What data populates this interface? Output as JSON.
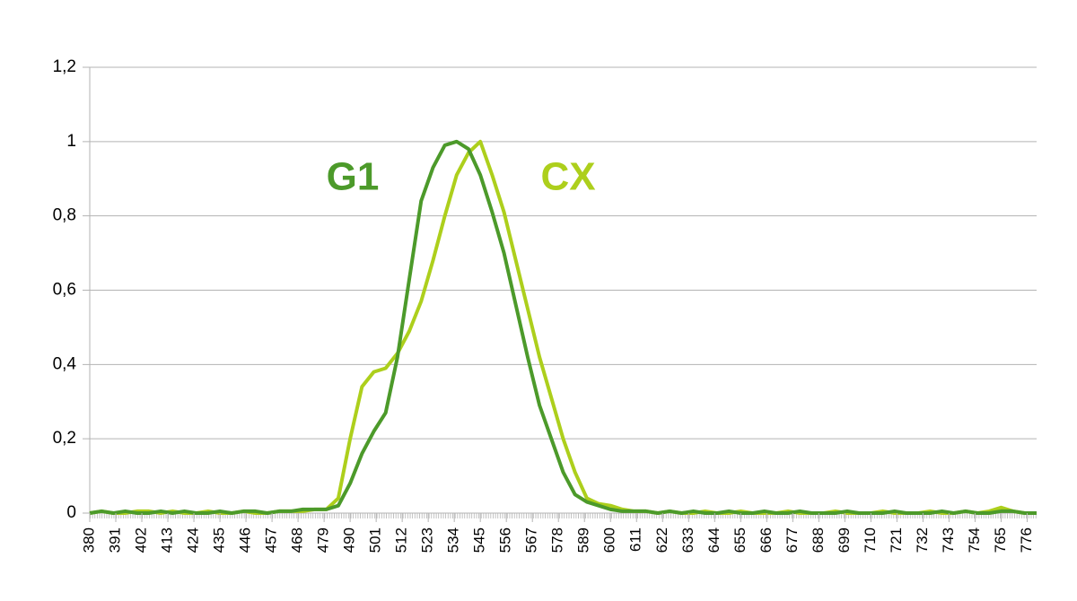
{
  "chart_data": {
    "type": "line",
    "x": [
      380,
      385,
      390,
      395,
      400,
      405,
      410,
      415,
      420,
      425,
      430,
      435,
      440,
      445,
      450,
      455,
      460,
      465,
      470,
      475,
      480,
      485,
      490,
      495,
      500,
      505,
      510,
      515,
      520,
      525,
      530,
      535,
      540,
      545,
      550,
      555,
      560,
      565,
      570,
      575,
      580,
      585,
      590,
      595,
      600,
      605,
      610,
      615,
      620,
      625,
      630,
      635,
      640,
      645,
      650,
      655,
      660,
      665,
      670,
      675,
      680,
      685,
      690,
      695,
      700,
      705,
      710,
      715,
      720,
      725,
      730,
      735,
      740,
      745,
      750,
      755,
      760,
      765,
      770,
      775,
      780
    ],
    "series": [
      {
        "name": "G1",
        "color": "#4c9a2a",
        "values": [
          0,
          0.005,
          0,
          0.005,
          0,
          0,
          0.005,
          0,
          0.005,
          0,
          0,
          0.005,
          0,
          0.005,
          0.005,
          0,
          0.005,
          0.005,
          0.01,
          0.01,
          0.01,
          0.02,
          0.08,
          0.16,
          0.22,
          0.27,
          0.42,
          0.63,
          0.84,
          0.93,
          0.99,
          1.0,
          0.98,
          0.91,
          0.81,
          0.7,
          0.56,
          0.42,
          0.29,
          0.2,
          0.11,
          0.05,
          0.03,
          0.02,
          0.01,
          0.005,
          0.005,
          0.005,
          0,
          0.005,
          0,
          0.005,
          0,
          0,
          0.005,
          0,
          0,
          0.005,
          0,
          0,
          0.005,
          0,
          0,
          0,
          0.005,
          0,
          0,
          0,
          0.005,
          0,
          0,
          0,
          0.005,
          0,
          0.005,
          0,
          0,
          0.005,
          0.005,
          0,
          0
        ]
      },
      {
        "name": "CX",
        "color": "#adcf1c",
        "values": [
          0,
          0.005,
          0,
          0,
          0.005,
          0.005,
          0,
          0.005,
          0,
          0,
          0.005,
          0,
          0,
          0.005,
          0,
          0,
          0.005,
          0.005,
          0.005,
          0.01,
          0.01,
          0.04,
          0.2,
          0.34,
          0.38,
          0.39,
          0.43,
          0.49,
          0.57,
          0.68,
          0.8,
          0.91,
          0.97,
          1.0,
          0.91,
          0.81,
          0.68,
          0.55,
          0.42,
          0.31,
          0.2,
          0.11,
          0.04,
          0.025,
          0.02,
          0.01,
          0.005,
          0.005,
          0,
          0.005,
          0,
          0,
          0.005,
          0,
          0,
          0.005,
          0,
          0,
          0,
          0.005,
          0,
          0,
          0,
          0.005,
          0,
          0,
          0,
          0.005,
          0,
          0,
          0,
          0.005,
          0,
          0,
          0.005,
          0,
          0.005,
          0.015,
          0.005,
          0,
          0
        ]
      }
    ],
    "xlim": [
      380,
      780
    ],
    "xticks": [
      380,
      391,
      402,
      413,
      424,
      435,
      446,
      457,
      468,
      479,
      490,
      501,
      512,
      523,
      534,
      545,
      556,
      567,
      578,
      589,
      600,
      611,
      622,
      633,
      644,
      655,
      666,
      677,
      688,
      699,
      710,
      721,
      732,
      743,
      754,
      765,
      776
    ],
    "ylim": [
      0,
      1.2
    ],
    "yticks": [
      0,
      {
        "value": 0.2,
        "label": "0,2"
      },
      {
        "value": 0.4,
        "label": "0,4"
      },
      {
        "value": 0.6,
        "label": "0,6"
      },
      {
        "value": 0.8,
        "label": "0,8"
      },
      1,
      {
        "value": 1.2,
        "label": "1,2"
      }
    ],
    "grid": true
  }
}
